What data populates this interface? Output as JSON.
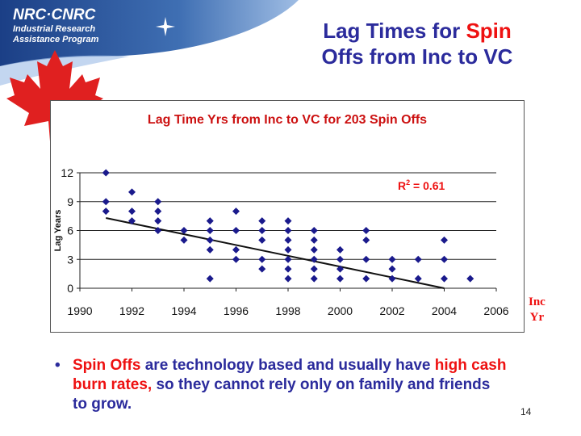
{
  "header": {
    "logo_nrc": "NRC·CNRC",
    "logo_line1": "Industrial Research",
    "logo_line2": "Assistance Program",
    "title_part1": "Lag Times for ",
    "title_part2": "Spin",
    "title_line2": "Offs from Inc to VC"
  },
  "chart_data": {
    "type": "scatter",
    "title": "Lag Time Yrs from Inc to VC for 203 Spin Offs",
    "xlabel": "",
    "ylabel": "Lag Years",
    "x_ticks": [
      "1990",
      "1992",
      "1994",
      "1996",
      "1998",
      "2000",
      "2002",
      "2004",
      "2006"
    ],
    "y_ticks": [
      "0",
      "3",
      "6",
      "9",
      "12"
    ],
    "xlim": [
      1990,
      2006
    ],
    "ylim": [
      0,
      12
    ],
    "grid": true,
    "r_squared_label": "R",
    "r_squared_sup": "2",
    "r_squared_value": " = 0.61",
    "trendline": {
      "x": [
        1991,
        2004
      ],
      "y": [
        7.3,
        0
      ]
    },
    "points": [
      [
        1991,
        12
      ],
      [
        1991,
        9
      ],
      [
        1991,
        8
      ],
      [
        1992,
        10
      ],
      [
        1992,
        8
      ],
      [
        1992,
        7
      ],
      [
        1993,
        9
      ],
      [
        1993,
        8
      ],
      [
        1993,
        7
      ],
      [
        1993,
        6
      ],
      [
        1994,
        6
      ],
      [
        1994,
        5
      ],
      [
        1995,
        7
      ],
      [
        1995,
        6
      ],
      [
        1995,
        5
      ],
      [
        1995,
        4
      ],
      [
        1995,
        1
      ],
      [
        1996,
        8
      ],
      [
        1996,
        6
      ],
      [
        1996,
        4
      ],
      [
        1996,
        3
      ],
      [
        1997,
        7
      ],
      [
        1997,
        6
      ],
      [
        1997,
        5
      ],
      [
        1997,
        3
      ],
      [
        1997,
        2
      ],
      [
        1998,
        7
      ],
      [
        1998,
        6
      ],
      [
        1998,
        5
      ],
      [
        1998,
        4
      ],
      [
        1998,
        3
      ],
      [
        1998,
        2
      ],
      [
        1998,
        1
      ],
      [
        1999,
        6
      ],
      [
        1999,
        5
      ],
      [
        1999,
        4
      ],
      [
        1999,
        3
      ],
      [
        1999,
        2
      ],
      [
        1999,
        1
      ],
      [
        2000,
        4
      ],
      [
        2000,
        3
      ],
      [
        2000,
        2
      ],
      [
        2000,
        1
      ],
      [
        2001,
        6
      ],
      [
        2001,
        5
      ],
      [
        2001,
        3
      ],
      [
        2001,
        1
      ],
      [
        2002,
        3
      ],
      [
        2002,
        2
      ],
      [
        2002,
        1
      ],
      [
        2003,
        3
      ],
      [
        2003,
        1
      ],
      [
        2004,
        5
      ],
      [
        2004,
        3
      ],
      [
        2004,
        1
      ],
      [
        2005,
        1
      ]
    ],
    "marker_color": "#1a1a8c",
    "title_color": "#cc1111",
    "r2_color": "#ee1111"
  },
  "axis_unit_label": {
    "line1": "Inc",
    "line2": "Yr"
  },
  "bullet": {
    "marker": "•",
    "seg1": "Spin Offs",
    "seg2": " are technology based and usually have ",
    "seg3": "high cash burn rates,",
    "seg4": " so they cannot rely only on family and friends to grow."
  },
  "footer": {
    "page_number": "14"
  }
}
